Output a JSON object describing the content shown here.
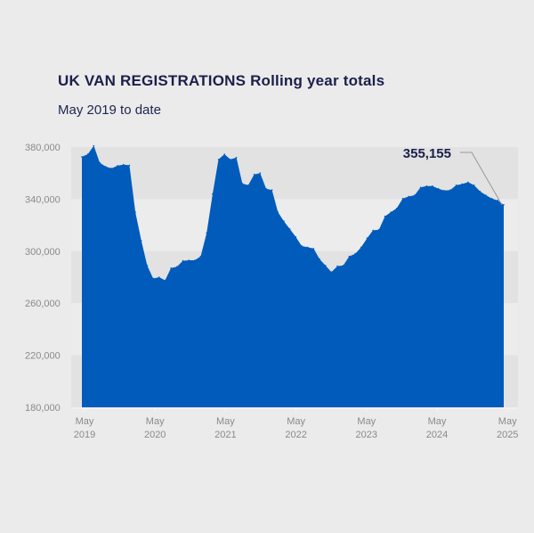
{
  "chart_data": {
    "type": "area",
    "title": "UK VAN REGISTRATIONS Rolling year totals",
    "subtitle": "May 2019 to date",
    "xlabel": "",
    "ylabel": "",
    "ylim": [
      180000,
      380000
    ],
    "yticks": [
      "380,000",
      "340,000",
      "300,000",
      "260,000",
      "220,000",
      "180,000"
    ],
    "ytick_values": [
      380000,
      340000,
      300000,
      260000,
      220000,
      180000
    ],
    "xticks": [
      {
        "month": "May",
        "year": "2019"
      },
      {
        "month": "May",
        "year": "2020"
      },
      {
        "month": "May",
        "year": "2021"
      },
      {
        "month": "May",
        "year": "2022"
      },
      {
        "month": "May",
        "year": "2023"
      },
      {
        "month": "May",
        "year": "2024"
      },
      {
        "month": "May",
        "year": "2025"
      }
    ],
    "x": [
      "2019-05",
      "2019-06",
      "2019-07",
      "2019-08",
      "2019-09",
      "2019-10",
      "2019-11",
      "2019-12",
      "2020-01",
      "2020-02",
      "2020-03",
      "2020-04",
      "2020-05",
      "2020-06",
      "2020-07",
      "2020-08",
      "2020-09",
      "2020-10",
      "2020-11",
      "2020-12",
      "2021-01",
      "2021-02",
      "2021-03",
      "2021-04",
      "2021-05",
      "2021-06",
      "2021-07",
      "2021-08",
      "2021-09",
      "2021-10",
      "2021-11",
      "2021-12",
      "2022-01",
      "2022-02",
      "2022-03",
      "2022-04",
      "2022-05",
      "2022-06",
      "2022-07",
      "2022-08",
      "2022-09",
      "2022-10",
      "2022-11",
      "2022-12",
      "2023-01",
      "2023-02",
      "2023-03",
      "2023-04",
      "2023-05",
      "2023-06",
      "2023-07",
      "2023-08",
      "2023-09",
      "2023-10",
      "2023-11",
      "2023-12",
      "2024-01",
      "2024-02",
      "2024-03",
      "2024-04",
      "2024-05",
      "2024-06",
      "2024-07",
      "2024-08",
      "2024-09",
      "2024-10",
      "2024-11",
      "2024-12",
      "2025-01",
      "2025-02",
      "2025-03",
      "2025-04"
    ],
    "values": [
      372500,
      374500,
      381000,
      368000,
      365000,
      363600,
      365700,
      366500,
      366000,
      330000,
      308000,
      289000,
      279000,
      280000,
      277600,
      287000,
      288000,
      292600,
      293000,
      293000,
      296000,
      314000,
      344000,
      370500,
      374500,
      370500,
      372000,
      352000,
      350700,
      359000,
      360000,
      348000,
      347000,
      330000,
      323000,
      317000,
      311000,
      304000,
      303000,
      302000,
      294000,
      289000,
      284000,
      288500,
      289000,
      296000,
      298000,
      303000,
      310000,
      316000,
      316500,
      326800,
      330000,
      333000,
      340400,
      342000,
      343000,
      349000,
      350000,
      350000,
      348000,
      346600,
      347000,
      350700,
      351600,
      353000,
      350700,
      346000,
      343000,
      340400,
      339000,
      335600
    ],
    "annotation": "355,155",
    "grid": "alternating horizontal bands",
    "legend": "none",
    "colors": {
      "fill": "#005bbb",
      "band_dark": "#e2e2e2",
      "band_light": "#ececec",
      "title": "#1b1f4b",
      "axis_text": "#8a8a8a",
      "leader": "#999999"
    }
  }
}
